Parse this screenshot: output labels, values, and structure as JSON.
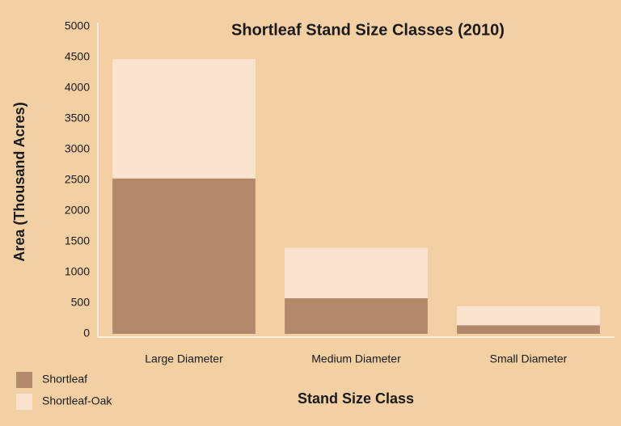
{
  "chart_data": {
    "type": "stacked-bar",
    "title": "Shortleaf Stand Size Classes (2010)",
    "x_label": "Stand Size Class",
    "y_label": "Area (Thousand Acres)",
    "categories": [
      "Large Diameter",
      "Medium Diameter",
      "Small Diameter"
    ],
    "series": [
      {
        "name": "Shortleaf",
        "color": "#b3896b",
        "values": [
          2530,
          580,
          140
        ]
      },
      {
        "name": "Shortleaf-Oak",
        "color": "#fae4cf",
        "values": [
          1940,
          820,
          310
        ]
      }
    ],
    "ylim": [
      0,
      5000
    ],
    "yticks": [
      0,
      500,
      1000,
      1500,
      2000,
      2500,
      3000,
      3500,
      4000,
      4500,
      5000
    ],
    "grid": false,
    "legend": "bottom-left"
  }
}
